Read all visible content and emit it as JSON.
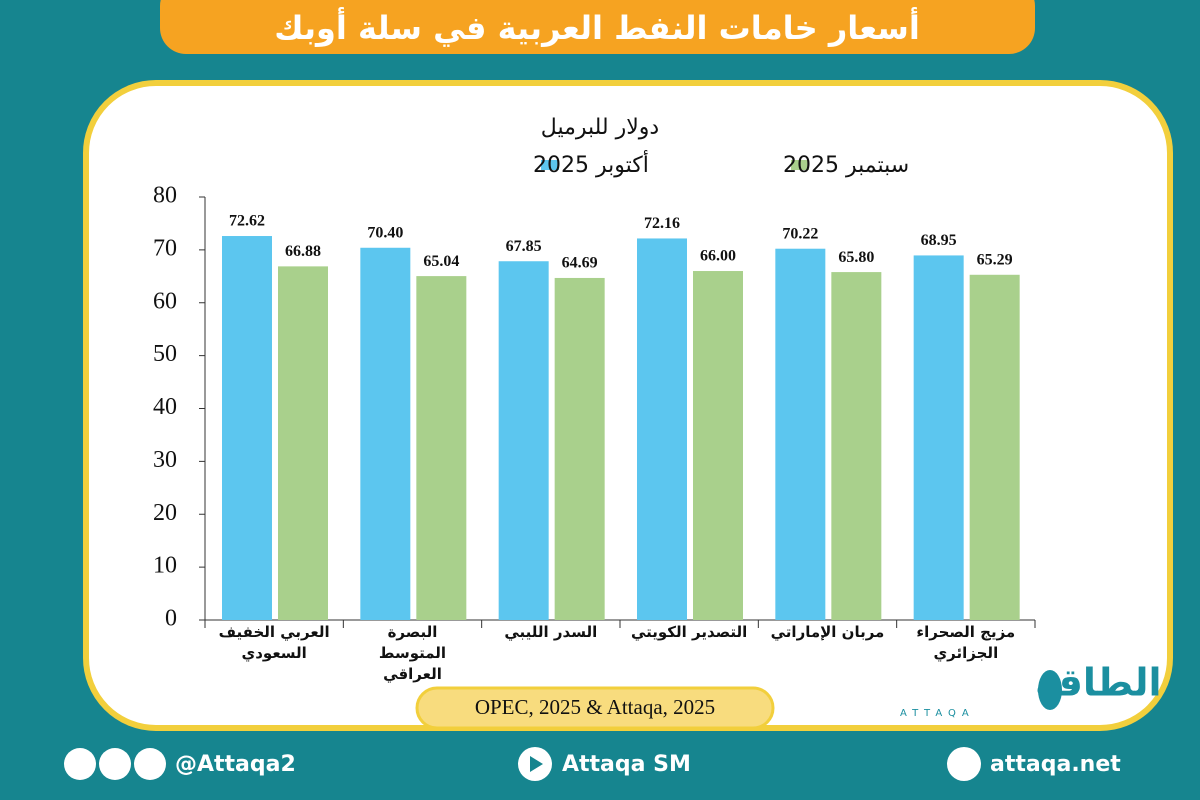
{
  "chart_data": {
    "type": "bar",
    "title": "أسعار خامات النفط العربية في سلة أوبك",
    "y_label": "دولار للبرميل",
    "categories": [
      "العربي الخفيف السعودي",
      "البصرة المتوسط العراقي",
      "السدر الليبي",
      "التصدير الكويتي",
      "مربان الإماراتي",
      "مزيج الصحراء الجزائري"
    ],
    "series": [
      {
        "name": "أكتوبر 2025",
        "color": "#5cc6ef",
        "values": [
          72.62,
          70.4,
          67.85,
          72.16,
          70.22,
          68.95
        ],
        "value_labels": [
          "72.62",
          "70.40",
          "67.85",
          "72.16",
          "70.22",
          "68.95"
        ]
      },
      {
        "name": "سبتمبر 2025",
        "color": "#a9d08c",
        "values": [
          66.88,
          65.04,
          64.69,
          66,
          65.8,
          65.29
        ],
        "value_labels": [
          "66.88",
          "65.04",
          "64.69",
          "66.00",
          "65.80",
          "65.29"
        ]
      }
    ],
    "ylim": [
      0,
      80
    ],
    "yticks": [
      0,
      10,
      20,
      30,
      40,
      50,
      60,
      70,
      80
    ],
    "grid": false,
    "source": "OPEC, 2025 & Attaqa, 2025"
  },
  "logo": {
    "arabic": "الطاقة",
    "latin": "ATTAQA"
  },
  "footer": {
    "social": "@Attaqa2",
    "youtube": "Attaqa SM",
    "website": "attaqa.net"
  }
}
